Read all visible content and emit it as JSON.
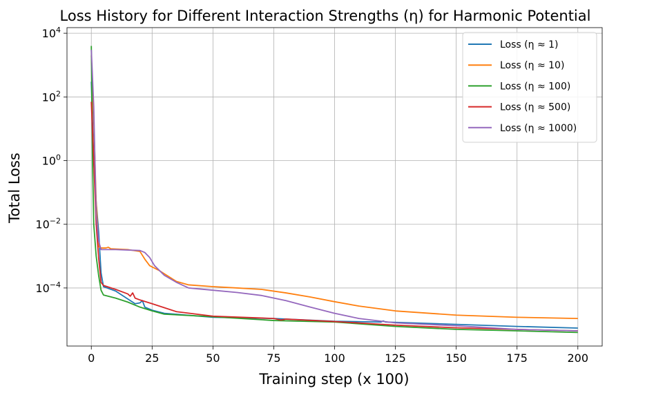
{
  "chart_data": {
    "type": "line",
    "title": "Loss History for Different Interaction Strengths (η) for Harmonic Potential",
    "xlabel": "Training step (x 100)",
    "ylabel": "Total Loss",
    "y_scale": "log",
    "grid": true,
    "legend_position": "top-right",
    "xlim": [
      -10,
      210
    ],
    "ylim": [
      1.5e-06,
      15000
    ],
    "x_ticks": [
      0,
      25,
      50,
      75,
      100,
      125,
      150,
      175,
      200
    ],
    "x_tick_labels": [
      "0",
      "25",
      "50",
      "75",
      "100",
      "125",
      "150",
      "175",
      "200"
    ],
    "y_ticks": [
      0.0001,
      0.01,
      1,
      100,
      10000
    ],
    "y_tick_labels": [
      {
        "base": "10",
        "exp": "−4"
      },
      {
        "base": "10",
        "exp": "−2"
      },
      {
        "base": "10",
        "exp": "0"
      },
      {
        "base": "10",
        "exp": "2"
      },
      {
        "base": "10",
        "exp": "4"
      }
    ],
    "series": [
      {
        "name": "Loss (η ≈ 1)",
        "color": "#1f77b4",
        "points": [
          [
            0,
            300
          ],
          [
            1,
            1
          ],
          [
            2,
            0.05
          ],
          [
            3,
            0.006
          ],
          [
            4,
            0.0003
          ],
          [
            5,
            0.00011
          ],
          [
            10,
            8e-05
          ],
          [
            15,
            4.5e-05
          ],
          [
            18,
            3.2e-05
          ],
          [
            20,
            3.4e-05
          ],
          [
            21,
            4e-05
          ],
          [
            22,
            2.5e-05
          ],
          [
            25,
            2e-05
          ],
          [
            30,
            1.6e-05
          ],
          [
            50,
            1.2e-05
          ],
          [
            75,
            1.1e-05
          ],
          [
            100,
            9e-06
          ],
          [
            119,
            8.5e-06
          ],
          [
            120,
            9.2e-06
          ],
          [
            121,
            8.5e-06
          ],
          [
            150,
            7.2e-06
          ],
          [
            175,
            6.2e-06
          ],
          [
            200,
            5.5e-06
          ]
        ]
      },
      {
        "name": "Loss (η ≈ 10)",
        "color": "#ff7f0e",
        "points": [
          [
            0,
            2000
          ],
          [
            1,
            20
          ],
          [
            2,
            0.05
          ],
          [
            3,
            0.002
          ],
          [
            4,
            0.0018
          ],
          [
            6,
            0.0018
          ],
          [
            7,
            0.0019
          ],
          [
            8,
            0.0017
          ],
          [
            15,
            0.0016
          ],
          [
            20,
            0.0014
          ],
          [
            22,
            0.0008
          ],
          [
            24,
            0.0005
          ],
          [
            28,
            0.00035
          ],
          [
            35,
            0.00016
          ],
          [
            40,
            0.000125
          ],
          [
            50,
            0.00011
          ],
          [
            60,
            0.0001
          ],
          [
            70,
            9e-05
          ],
          [
            80,
            7e-05
          ],
          [
            90,
            5.2e-05
          ],
          [
            100,
            3.7e-05
          ],
          [
            110,
            2.7e-05
          ],
          [
            125,
            1.9e-05
          ],
          [
            150,
            1.4e-05
          ],
          [
            175,
            1.2e-05
          ],
          [
            200,
            1.1e-05
          ]
        ]
      },
      {
        "name": "Loss (η ≈ 100)",
        "color": "#2ca02c",
        "points": [
          [
            0,
            4000
          ],
          [
            0.5,
            1
          ],
          [
            1,
            0.01
          ],
          [
            2,
            0.001
          ],
          [
            3,
            0.00025
          ],
          [
            4,
            8.5e-05
          ],
          [
            5,
            6e-05
          ],
          [
            10,
            4.8e-05
          ],
          [
            15,
            3.6e-05
          ],
          [
            20,
            2.5e-05
          ],
          [
            25,
            1.9e-05
          ],
          [
            30,
            1.5e-05
          ],
          [
            50,
            1.25e-05
          ],
          [
            75,
            9.5e-06
          ],
          [
            100,
            8.5e-06
          ],
          [
            125,
            6.2e-06
          ],
          [
            150,
            5e-06
          ],
          [
            175,
            4.5e-06
          ],
          [
            200,
            4e-06
          ]
        ]
      },
      {
        "name": "Loss (η ≈ 500)",
        "color": "#d62728",
        "points": [
          [
            0,
            70
          ],
          [
            1,
            1
          ],
          [
            2,
            0.01
          ],
          [
            3,
            0.0009
          ],
          [
            4,
            0.00015
          ],
          [
            5,
            0.00012
          ],
          [
            10,
            9e-05
          ],
          [
            15,
            6.5e-05
          ],
          [
            16,
            5.5e-05
          ],
          [
            17,
            7e-05
          ],
          [
            18,
            4.8e-05
          ],
          [
            20,
            4.2e-05
          ],
          [
            25,
            3.2e-05
          ],
          [
            30,
            2.4e-05
          ],
          [
            35,
            1.8e-05
          ],
          [
            50,
            1.3e-05
          ],
          [
            75,
            1.1e-05
          ],
          [
            78,
            9.8e-06
          ],
          [
            80,
            1.05e-05
          ],
          [
            100,
            8.8e-06
          ],
          [
            125,
            6.8e-06
          ],
          [
            150,
            5.6e-06
          ],
          [
            175,
            5e-06
          ],
          [
            200,
            4.5e-06
          ]
        ]
      },
      {
        "name": "Loss (η ≈ 1000)",
        "color": "#9467bd",
        "points": [
          [
            0,
            3000
          ],
          [
            1,
            50
          ],
          [
            2,
            0.02
          ],
          [
            3,
            0.003
          ],
          [
            4,
            0.0016
          ],
          [
            10,
            0.0016
          ],
          [
            20,
            0.0015
          ],
          [
            22,
            0.0013
          ],
          [
            24,
            0.0009
          ],
          [
            26,
            0.0005
          ],
          [
            30,
            0.00025
          ],
          [
            35,
            0.00015
          ],
          [
            40,
            0.0001
          ],
          [
            50,
            8.5e-05
          ],
          [
            60,
            7.2e-05
          ],
          [
            70,
            5.8e-05
          ],
          [
            80,
            4e-05
          ],
          [
            90,
            2.5e-05
          ],
          [
            100,
            1.6e-05
          ],
          [
            110,
            1.1e-05
          ],
          [
            125,
            8e-06
          ],
          [
            150,
            6.5e-06
          ],
          [
            175,
            5e-06
          ],
          [
            200,
            4.5e-06
          ]
        ]
      }
    ]
  }
}
